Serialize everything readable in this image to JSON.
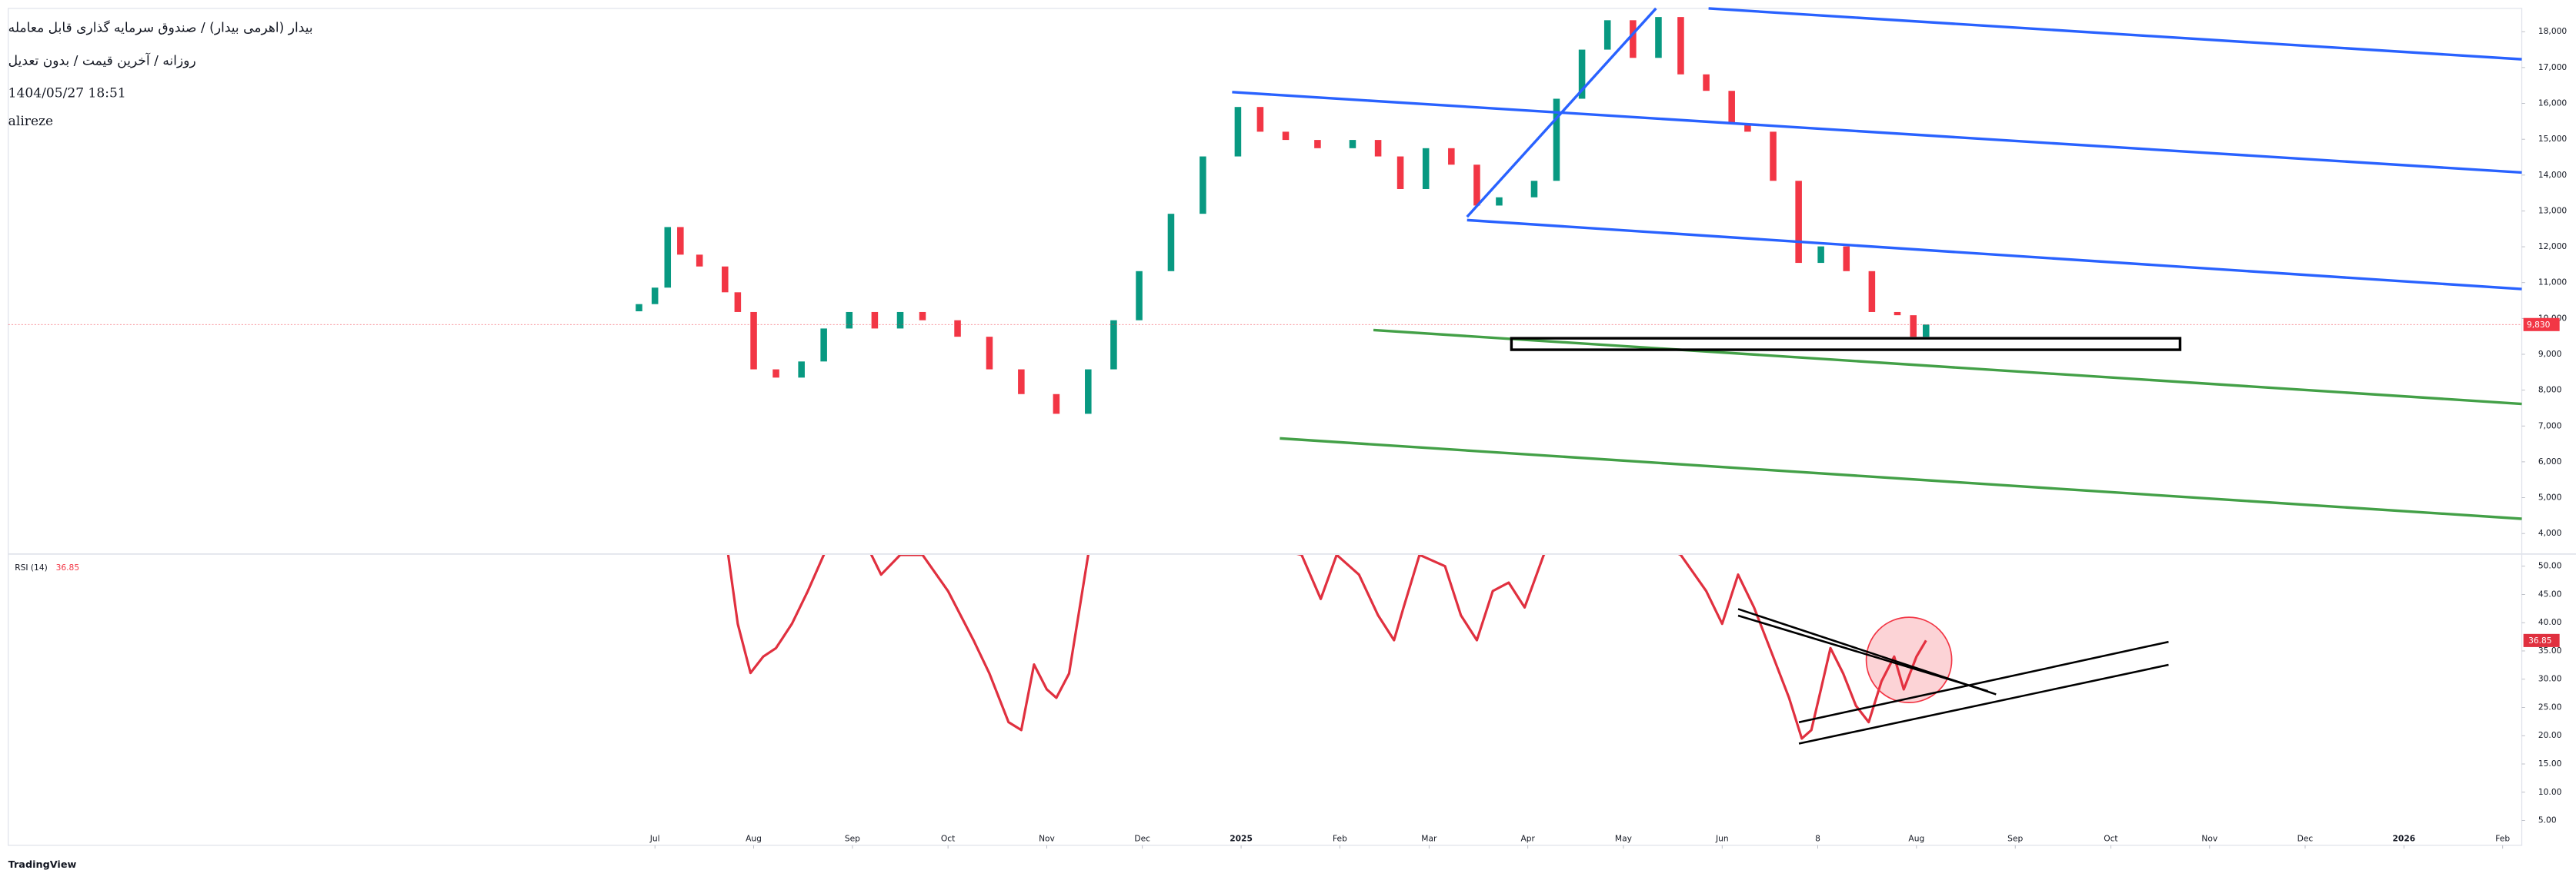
{
  "chart_data": [
    {
      "type": "candlestick",
      "title": "بیدار (اهرمی بیدار) / صندوق سرمایه گذاری قابل معامله",
      "subtitle": "روزانه / آخرین قیمت / بدون تعدیل",
      "date": "1404/05/27 18:51",
      "author": "alireze",
      "up_color": "#089981",
      "down_color": "#f23645",
      "x": [
        -5,
        0,
        4,
        8,
        14,
        22,
        26,
        31,
        38,
        46,
        53,
        61,
        69,
        77,
        84,
        95,
        105,
        115,
        126,
        136,
        144,
        152,
        162,
        172,
        183,
        190,
        198,
        208,
        219,
        227,
        234,
        242,
        250,
        258,
        265,
        276,
        283,
        291,
        299,
        307,
        315,
        322,
        330,
        338,
        343,
        351,
        359,
        366,
        374,
        382,
        390,
        395,
        399
      ],
      "open": [
        10200,
        10400,
        10860,
        12550,
        11780,
        11450,
        10730,
        10180,
        8580,
        8350,
        8800,
        9720,
        10180,
        9720,
        10180,
        9950,
        9490,
        8580,
        7890,
        7340,
        8580,
        9950,
        11320,
        12920,
        14520,
        15900,
        15210,
        14980,
        14750,
        14980,
        14520,
        13610,
        14750,
        14290,
        13150,
        13380,
        13840,
        16130,
        17500,
        18320,
        17270,
        18410,
        16810,
        16350,
        15440,
        15210,
        13840,
        11550,
        12010,
        11320,
        10180,
        10090,
        9490
      ],
      "close": [
        10400,
        10860,
        12550,
        11780,
        11450,
        10730,
        10180,
        8580,
        8350,
        8800,
        9720,
        10180,
        9720,
        10180,
        9950,
        9490,
        8580,
        7890,
        7340,
        8580,
        9950,
        11320,
        12920,
        14520,
        15900,
        15210,
        14980,
        14750,
        14980,
        14520,
        13610,
        14750,
        14290,
        13150,
        13380,
        13840,
        16130,
        17500,
        18320,
        17270,
        18410,
        16810,
        16350,
        15440,
        15210,
        13840,
        11550,
        12010,
        11320,
        10180,
        10090,
        9490,
        9830
      ],
      "last_price": {
        "value": 9830,
        "label": "9,830"
      },
      "xlim": [
        -203,
        586
      ],
      "ylim": [
        3450,
        18650
      ],
      "yticks": [
        {
          "value": 4000,
          "label": "4,000"
        },
        {
          "value": 5000,
          "label": "5,000"
        },
        {
          "value": 6000,
          "label": "6,000"
        },
        {
          "value": 7000,
          "label": "7,000"
        },
        {
          "value": 8000,
          "label": "8,000"
        },
        {
          "value": 9000,
          "label": "9,000"
        },
        {
          "value": 10000,
          "label": "10,000"
        },
        {
          "value": 11000,
          "label": "11,000"
        },
        {
          "value": 12000,
          "label": "12,000"
        },
        {
          "value": 13000,
          "label": "13,000"
        },
        {
          "value": 14000,
          "label": "14,000"
        },
        {
          "value": 15000,
          "label": "15,000"
        },
        {
          "value": 16000,
          "label": "16,000"
        },
        {
          "value": 17000,
          "label": "17,000"
        },
        {
          "value": 18000,
          "label": "18,000"
        }
      ],
      "grid": false
    },
    {
      "type": "line",
      "name": "RSI (14)",
      "last_value": 36.85,
      "color": "#e0303f",
      "x": [
        23,
        26,
        30,
        34,
        38,
        43,
        48,
        53,
        61,
        71,
        77,
        84,
        92,
        100,
        105,
        111,
        115,
        119,
        123,
        126,
        130,
        136,
        144,
        203,
        209,
        214,
        221,
        227,
        232,
        235,
        240,
        248,
        253,
        258,
        263,
        268,
        273,
        279,
        291,
        322,
        330,
        335,
        340,
        345,
        351,
        356,
        360,
        363,
        366,
        369,
        373,
        377,
        381,
        385,
        389,
        392,
        396,
        399
      ],
      "values": [
        52,
        39.8,
        31.1,
        34,
        35.5,
        39.8,
        45.6,
        52,
        60,
        48.5,
        52,
        52,
        45.6,
        36.9,
        31,
        22.4,
        21,
        32.6,
        28.2,
        26.7,
        31,
        52,
        60,
        52,
        44.2,
        52,
        48.5,
        41.3,
        36.9,
        42.7,
        52,
        50,
        41.3,
        36.9,
        45.6,
        47.1,
        42.7,
        52,
        60,
        52,
        45.6,
        39.8,
        48.5,
        42.7,
        34,
        26.7,
        19.5,
        21,
        28.2,
        35.5,
        31,
        25.3,
        22.4,
        29.6,
        34,
        28.2,
        34,
        36.85
      ],
      "xlim": [
        -203,
        586
      ],
      "ylim": [
        0.6,
        52
      ],
      "yticks": [
        {
          "value": 5,
          "label": "5.00"
        },
        {
          "value": 10,
          "label": "10.00"
        },
        {
          "value": 15,
          "label": "15.00"
        },
        {
          "value": 20,
          "label": "20.00"
        },
        {
          "value": 25,
          "label": "25.00"
        },
        {
          "value": 30,
          "label": "30.00"
        },
        {
          "value": 35,
          "label": "35.00"
        },
        {
          "value": 40,
          "label": "40.00"
        },
        {
          "value": 45,
          "label": "45.00"
        },
        {
          "value": 50,
          "label": "50.00"
        }
      ],
      "xticks": [
        {
          "value": 0,
          "label": "Jul"
        },
        {
          "value": 31,
          "label": "Aug"
        },
        {
          "value": 62,
          "label": "Sep"
        },
        {
          "value": 92,
          "label": "Oct"
        },
        {
          "value": 123,
          "label": "Nov"
        },
        {
          "value": 153,
          "label": "Dec"
        },
        {
          "value": 184,
          "label": "2025"
        },
        {
          "value": 215,
          "label": "Feb"
        },
        {
          "value": 243,
          "label": "Mar"
        },
        {
          "value": 274,
          "label": "Apr"
        },
        {
          "value": 304,
          "label": "May"
        },
        {
          "value": 335,
          "label": "Jun"
        },
        {
          "value": 365,
          "label": "8"
        },
        {
          "value": 396,
          "label": "Aug"
        },
        {
          "value": 427,
          "label": "Sep"
        },
        {
          "value": 457,
          "label": "Oct"
        },
        {
          "value": 488,
          "label": "Nov"
        },
        {
          "value": 518,
          "label": "Dec"
        },
        {
          "value": 549,
          "label": "2026"
        },
        {
          "value": 580,
          "label": "Feb"
        }
      ]
    }
  ],
  "footer": "TradingView"
}
